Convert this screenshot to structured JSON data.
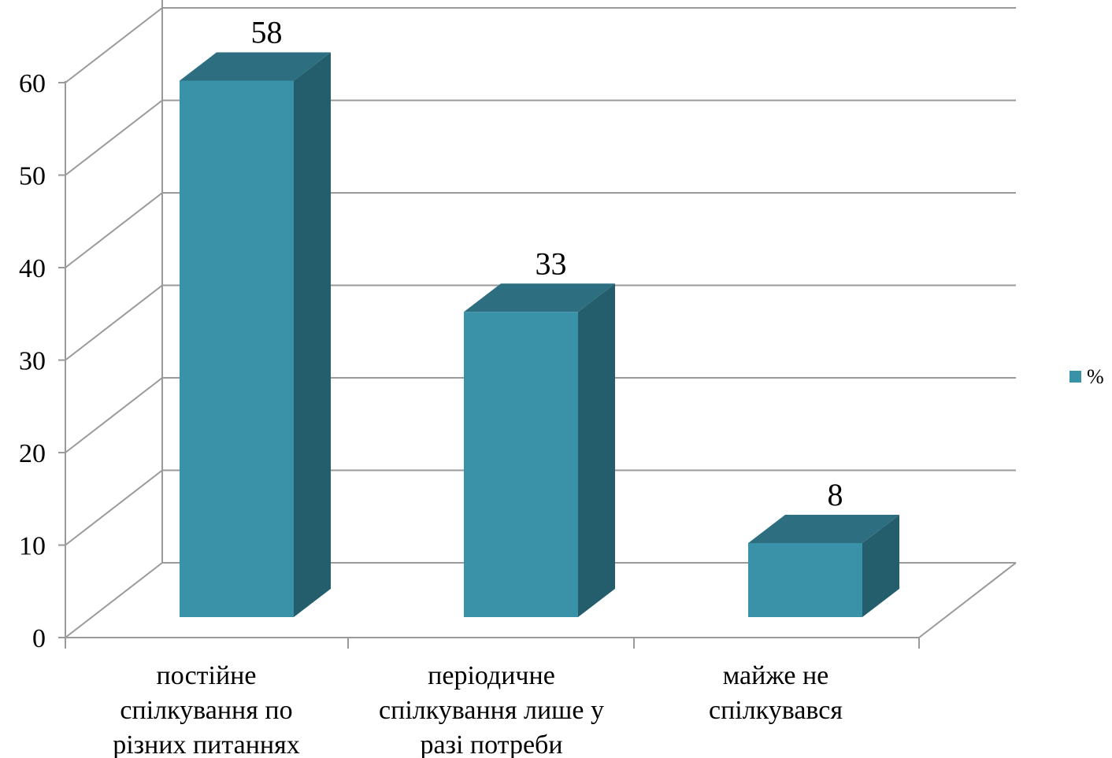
{
  "chart_data": {
    "type": "bar",
    "style": "3d-column",
    "categories": [
      [
        "постійне",
        "спілкування по",
        "різних питаннях"
      ],
      [
        "періодичне",
        "спілкування лише у",
        "разі потреби"
      ],
      [
        "майже не",
        "спілкувався"
      ]
    ],
    "series": [
      {
        "name": "%",
        "values": [
          58,
          33,
          8
        ],
        "color": "#3A92A8"
      }
    ],
    "data_labels": [
      "58",
      "33",
      "8"
    ],
    "y_ticks": [
      "0",
      "10",
      "20",
      "30",
      "40",
      "50",
      "60"
    ],
    "ylim": [
      0,
      68
    ],
    "grid": true,
    "legend": {
      "position": "right",
      "label": "%"
    },
    "colors": {
      "front": "#3A92A8",
      "side": "#245E6C",
      "top": "#2D6F80",
      "grid": "#9A9A9A"
    }
  }
}
